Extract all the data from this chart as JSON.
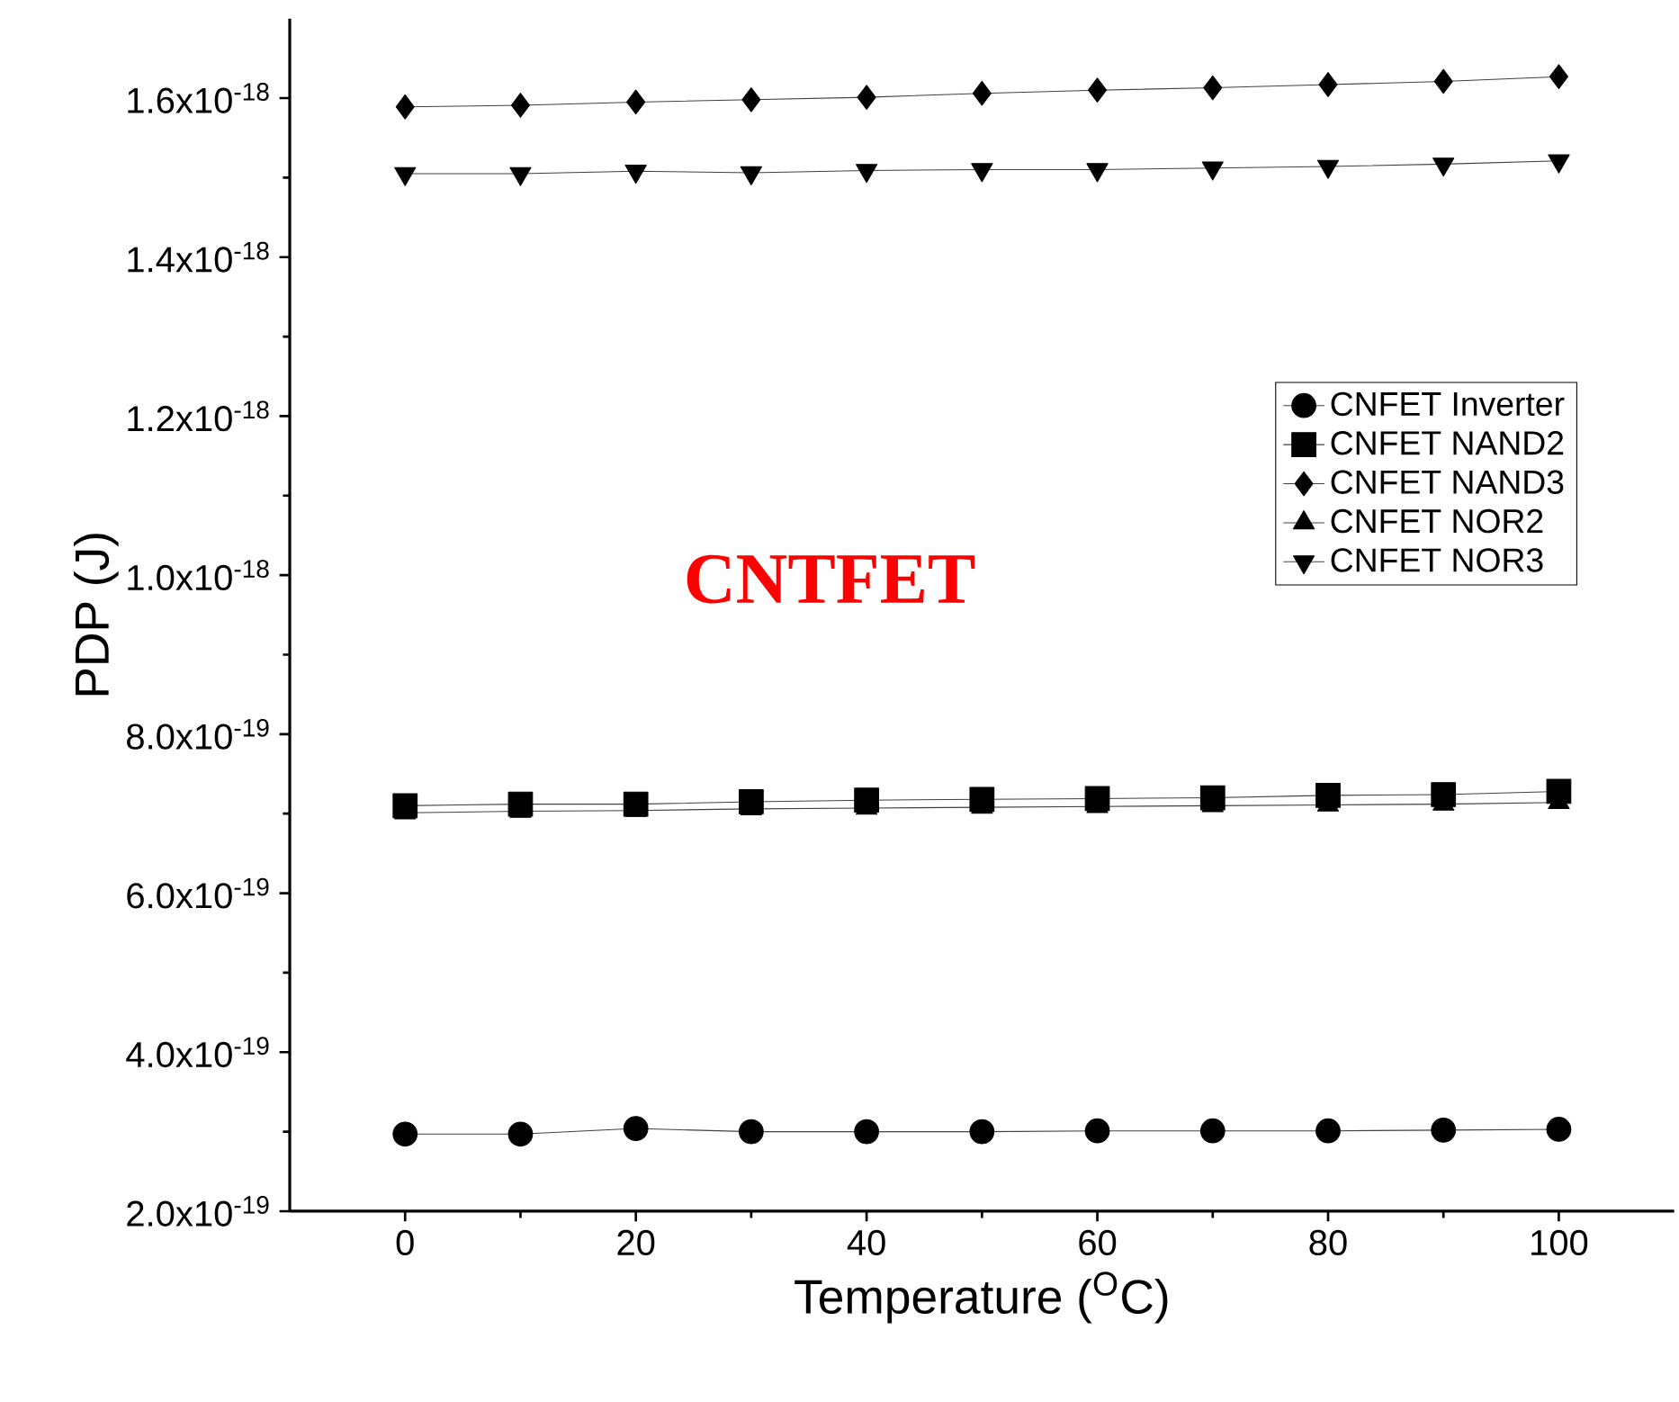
{
  "chart_data": {
    "type": "line",
    "xlabel": "Temperature ($^{O}$C)",
    "ylabel": "PDP (J)",
    "annotations": [
      "CNTFET"
    ],
    "x": [
      0,
      10,
      20,
      30,
      40,
      50,
      60,
      70,
      80,
      90,
      100
    ],
    "xlim": [
      -10,
      110
    ],
    "xticks": [
      0,
      20,
      40,
      60,
      80,
      100
    ],
    "ylim": [
      2e-19,
      1.7e-18
    ],
    "yticks": [
      {
        "value": 2e-19,
        "label": "2.0x10$^{-19}$"
      },
      {
        "value": 4e-19,
        "label": "4.0x10$^{-19}$"
      },
      {
        "value": 6e-19,
        "label": "6.0x10$^{-19}$"
      },
      {
        "value": 8e-19,
        "label": "8.0x10$^{-19}$"
      },
      {
        "value": 1e-18,
        "label": "1.0x10$^{-18}$"
      },
      {
        "value": 1.2e-18,
        "label": "1.2x10$^{-18}$"
      },
      {
        "value": 1.4e-18,
        "label": "1.4x10$^{-18}$"
      },
      {
        "value": 1.6e-18,
        "label": "1.6x10$^{-18}$"
      }
    ],
    "legend": "right",
    "grid": false,
    "series": [
      {
        "name": "CNFET Inverter",
        "color": "#000000",
        "marker": "circle",
        "values": [
          2.97e-19,
          2.97e-19,
          3.04e-19,
          3e-19,
          3e-19,
          3e-19,
          3.01e-19,
          3.01e-19,
          3.01e-19,
          3.02e-19,
          3.03e-19
        ]
      },
      {
        "name": "CNFET NAND2",
        "color": "#000000",
        "marker": "square",
        "values": [
          7.1e-19,
          7.12e-19,
          7.12e-19,
          7.15e-19,
          7.17e-19,
          7.18e-19,
          7.19e-19,
          7.2e-19,
          7.23e-19,
          7.24e-19,
          7.28e-19
        ]
      },
      {
        "name": "CNFET NAND3",
        "color": "#000000",
        "marker": "diamond",
        "values": [
          1.589e-18,
          1.591e-18,
          1.595e-18,
          1.598e-18,
          1.601e-18,
          1.606e-18,
          1.61e-18,
          1.613e-18,
          1.617e-18,
          1.621e-18,
          1.627e-18
        ]
      },
      {
        "name": "CNFET NOR2",
        "color": "#000000",
        "marker": "triangle",
        "values": [
          7.01e-19,
          7.03e-19,
          7.04e-19,
          7.06e-19,
          7.07e-19,
          7.08e-19,
          7.09e-19,
          7.1e-19,
          7.11e-19,
          7.12e-19,
          7.14e-19
        ]
      },
      {
        "name": "CNFET NOR3",
        "color": "#000000",
        "marker": "triangle-down",
        "values": [
          1.505e-18,
          1.505e-18,
          1.508e-18,
          1.506e-18,
          1.509e-18,
          1.51e-18,
          1.51e-18,
          1.512e-18,
          1.514e-18,
          1.517e-18,
          1.521e-18
        ]
      }
    ]
  }
}
